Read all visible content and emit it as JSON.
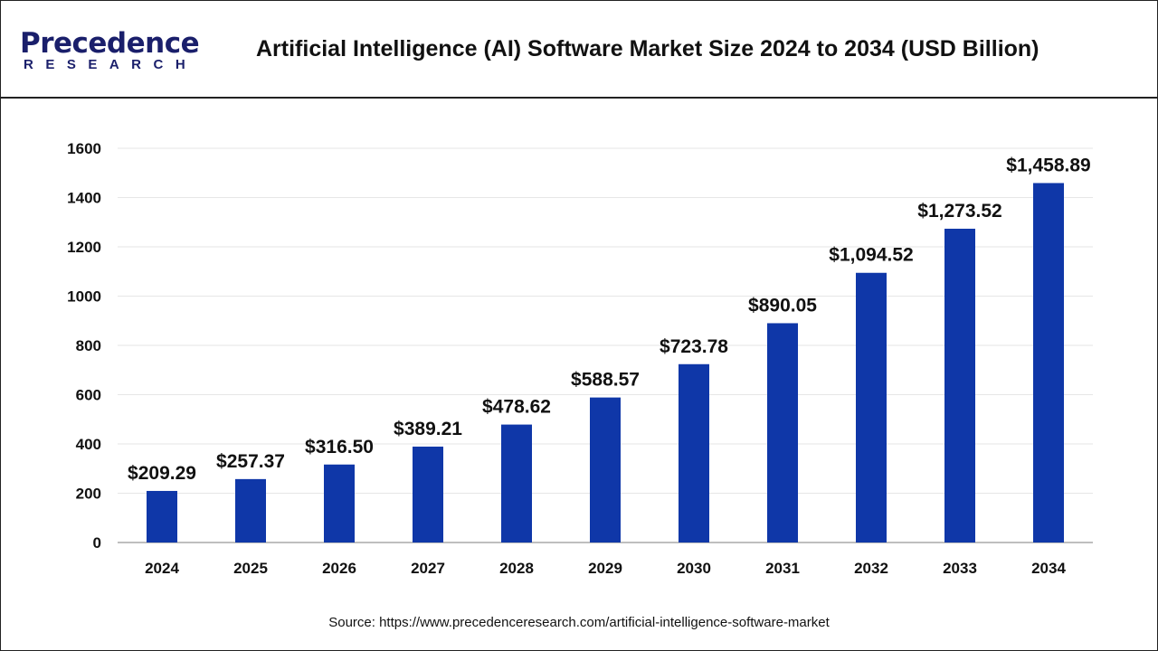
{
  "header": {
    "logo_text_top": "Precedence",
    "logo_text_bottom": "RESEARCH",
    "title": "Artificial Intelligence (AI) Software Market Size 2024 to 2034 (USD Billion)"
  },
  "source": "Source: https://www.precedenceresearch.com/artificial-intelligence-software-market",
  "colors": {
    "bar": "#0f37a8",
    "grid": "#e6e6e6",
    "axis": "#bfbfbf"
  },
  "chart_data": {
    "type": "bar",
    "title": "Artificial Intelligence (AI) Software Market Size 2024 to 2034 (USD Billion)",
    "xlabel": "",
    "ylabel": "",
    "categories": [
      "2024",
      "2025",
      "2026",
      "2027",
      "2028",
      "2029",
      "2030",
      "2031",
      "2032",
      "2033",
      "2034"
    ],
    "values": [
      209.29,
      257.37,
      316.5,
      389.21,
      478.62,
      588.57,
      723.78,
      890.05,
      1094.52,
      1273.52,
      1458.89
    ],
    "data_labels": [
      "$209.29",
      "$257.37",
      "$316.50",
      "$389.21",
      "$478.62",
      "$588.57",
      "$723.78",
      "$890.05",
      "$1,094.52",
      "$1,273.52",
      "$1,458.89"
    ],
    "ylim": [
      0,
      1600
    ],
    "yticks": [
      "0",
      "200",
      "400",
      "600",
      "800",
      "1000",
      "1200",
      "1400",
      "1600"
    ],
    "grid": true,
    "legend": "none"
  }
}
